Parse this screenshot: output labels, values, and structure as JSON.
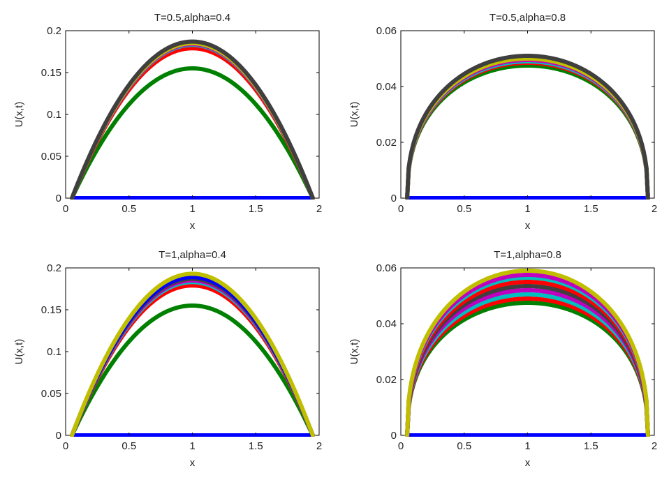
{
  "chart_data": [
    {
      "type": "line",
      "title": "T=0.5,alpha=0.4",
      "xlabel": "x",
      "ylabel": "U(x,t)",
      "xlim": [
        0,
        2
      ],
      "ylim": [
        0,
        0.2
      ],
      "xticks": [
        0,
        0.5,
        1,
        1.5,
        2
      ],
      "xtick_labels": [
        "0",
        "0.5",
        "1",
        "1.5",
        "2"
      ],
      "yticks": [
        0,
        0.05,
        0.1,
        0.15,
        0.2
      ],
      "ytick_labels": [
        "0",
        "0.05",
        "0.1",
        "0.15",
        "0.2"
      ],
      "grid": false,
      "x_range": [
        0.05,
        1.95
      ],
      "curve_shape": "parabola",
      "series": [
        {
          "color": "#0000ff",
          "peak": 0.0
        },
        {
          "color": "#008000",
          "peak": 0.155
        },
        {
          "color": "#ff0000",
          "peak": 0.179
        },
        {
          "color": "#00bfbf",
          "peak": 0.183
        },
        {
          "color": "#bf00bf",
          "peak": 0.184
        },
        {
          "color": "#bfbf00",
          "peak": 0.185
        },
        {
          "color": "#3f3f3f",
          "peak": 0.187
        }
      ]
    },
    {
      "type": "line",
      "title": "T=0.5,alpha=0.8",
      "xlabel": "x",
      "ylabel": "U(x,t)",
      "xlim": [
        0,
        2
      ],
      "ylim": [
        0,
        0.06
      ],
      "xticks": [
        0,
        0.5,
        1,
        1.5,
        2
      ],
      "xtick_labels": [
        "0",
        "0.5",
        "1",
        "1.5",
        "2"
      ],
      "yticks": [
        0,
        0.02,
        0.04,
        0.06
      ],
      "ytick_labels": [
        "0",
        "0.02",
        "0.04",
        "0.06"
      ],
      "grid": false,
      "x_range": [
        0.05,
        1.95
      ],
      "curve_shape": "rounded-plateau",
      "series": [
        {
          "color": "#0000ff",
          "peak": 0.0
        },
        {
          "color": "#008000",
          "peak": 0.0475
        },
        {
          "color": "#ff0000",
          "peak": 0.0485
        },
        {
          "color": "#00bfbf",
          "peak": 0.049
        },
        {
          "color": "#bf00bf",
          "peak": 0.0495
        },
        {
          "color": "#bfbf00",
          "peak": 0.05
        },
        {
          "color": "#3f3f3f",
          "peak": 0.051
        }
      ]
    },
    {
      "type": "line",
      "title": "T=1,alpha=0.4",
      "xlabel": "x",
      "ylabel": "U(x,t)",
      "xlim": [
        0,
        2
      ],
      "ylim": [
        0,
        0.2
      ],
      "xticks": [
        0,
        0.5,
        1,
        1.5,
        2
      ],
      "xtick_labels": [
        "0",
        "0.5",
        "1",
        "1.5",
        "2"
      ],
      "yticks": [
        0,
        0.05,
        0.1,
        0.15,
        0.2
      ],
      "ytick_labels": [
        "0",
        "0.05",
        "0.1",
        "0.15",
        "0.2"
      ],
      "grid": false,
      "x_range": [
        0.05,
        1.95
      ],
      "curve_shape": "parabola",
      "series": [
        {
          "color": "#0000ff",
          "peak": 0.0
        },
        {
          "color": "#008000",
          "peak": 0.155
        },
        {
          "color": "#ff0000",
          "peak": 0.179
        },
        {
          "color": "#00bfbf",
          "peak": 0.183
        },
        {
          "color": "#bf00bf",
          "peak": 0.185
        },
        {
          "color": "#3f3f3f",
          "peak": 0.187
        },
        {
          "color": "#0000ff",
          "peak": 0.189
        },
        {
          "color": "#bfbf00",
          "peak": 0.193
        }
      ]
    },
    {
      "type": "line",
      "title": "T=1,alpha=0.8",
      "xlabel": "x",
      "ylabel": "U(x,t)",
      "xlim": [
        0,
        2
      ],
      "ylim": [
        0,
        0.06
      ],
      "xticks": [
        0,
        0.5,
        1,
        1.5,
        2
      ],
      "xtick_labels": [
        "0",
        "0.5",
        "1",
        "1.5",
        "2"
      ],
      "yticks": [
        0,
        0.02,
        0.04,
        0.06
      ],
      "ytick_labels": [
        "0",
        "0.02",
        "0.04",
        "0.06"
      ],
      "grid": false,
      "x_range": [
        0.05,
        1.95
      ],
      "curve_shape": "rounded-plateau",
      "series": [
        {
          "color": "#0000ff",
          "peak": 0.0
        },
        {
          "color": "#008000",
          "peak": 0.0475
        },
        {
          "color": "#ff0000",
          "peak": 0.049
        },
        {
          "color": "#00bfbf",
          "peak": 0.0505
        },
        {
          "color": "#bf00bf",
          "peak": 0.052
        },
        {
          "color": "#3f3f3f",
          "peak": 0.0535
        },
        {
          "color": "#ff0000",
          "peak": 0.055
        },
        {
          "color": "#00bfbf",
          "peak": 0.0565
        },
        {
          "color": "#bf00bf",
          "peak": 0.0575
        },
        {
          "color": "#bfbf00",
          "peak": 0.059
        }
      ]
    }
  ]
}
